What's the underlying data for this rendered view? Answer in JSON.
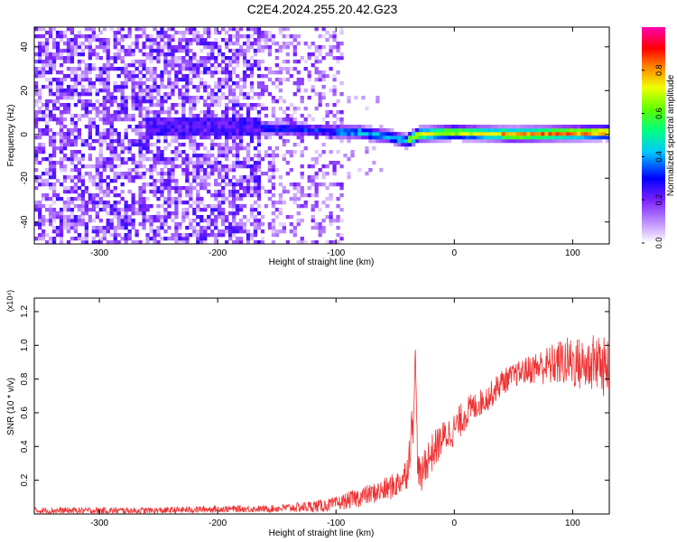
{
  "title": "C2E4.2024.255.20.42.G23",
  "chart_data": [
    {
      "type": "heatmap",
      "xlabel": "Height of straight line (km)",
      "ylabel": "Frequency (Hz)",
      "xlim": [
        -355,
        131
      ],
      "ylim": [
        -50,
        49
      ],
      "x_ticks": [
        -300,
        -200,
        -100,
        0,
        100
      ],
      "y_ticks": [
        -40,
        -20,
        0,
        20,
        40
      ],
      "colorbar": {
        "label": "Normalized spectral amplitude",
        "range": [
          0,
          1
        ],
        "ticks": [
          "0.0",
          "0.2",
          "0.4",
          "0.6",
          "0.8"
        ]
      },
      "description_regions": [
        {
          "x_range": [
            -355,
            -165
          ],
          "freq_range": [
            -50,
            49
          ],
          "amplitude": "low (0.05-0.25), broadband noise"
        },
        {
          "x_range": [
            -165,
            -95
          ],
          "freq_range": [
            -50,
            49
          ],
          "amplitude": "low noise, with band near 0 Hz reaching 0.3-0.5"
        },
        {
          "x_range": [
            -95,
            131
          ],
          "freq_range": [
            -5,
            5
          ],
          "amplitude": "narrow band centered near 0 Hz, rising to 0.6-0.9"
        }
      ],
      "narrow_band_center_hz": [
        {
          "x": -165,
          "f": 3
        },
        {
          "x": -120,
          "f": 2
        },
        {
          "x": -80,
          "f": 1
        },
        {
          "x": -55,
          "f": -1
        },
        {
          "x": -40,
          "f": -3
        },
        {
          "x": -30,
          "f": 0
        },
        {
          "x": 0,
          "f": 1
        },
        {
          "x": 50,
          "f": 0
        },
        {
          "x": 131,
          "f": 1
        }
      ]
    },
    {
      "type": "line",
      "xlabel": "Height of straight line (km)",
      "ylabel": "SNR (10 * v/v)",
      "y_multiplier": "(x10⁴)",
      "xlim": [
        -355,
        131
      ],
      "ylim": [
        0,
        1.28
      ],
      "x_ticks": [
        -300,
        -200,
        -100,
        0,
        100
      ],
      "y_ticks": [
        0.2,
        0.4,
        0.6,
        0.8,
        1.0,
        1.2
      ],
      "series_color": "#ee3333",
      "x": [
        -355,
        -300,
        -250,
        -200,
        -160,
        -130,
        -110,
        -100,
        -90,
        -80,
        -70,
        -60,
        -50,
        -45,
        -40,
        -35,
        -33,
        -31,
        -28,
        -25,
        -20,
        -10,
        0,
        10,
        20,
        30,
        40,
        50,
        60,
        70,
        80,
        90,
        100,
        110,
        120,
        131
      ],
      "y": [
        0.02,
        0.02,
        0.02,
        0.03,
        0.03,
        0.04,
        0.05,
        0.06,
        0.08,
        0.1,
        0.12,
        0.14,
        0.17,
        0.2,
        0.25,
        0.55,
        0.95,
        0.3,
        0.2,
        0.3,
        0.35,
        0.45,
        0.5,
        0.6,
        0.65,
        0.7,
        0.78,
        0.82,
        0.85,
        0.87,
        0.88,
        0.9,
        0.9,
        0.88,
        0.9,
        0.85
      ],
      "noise_amplitude": [
        0.02,
        0.02,
        0.02,
        0.02,
        0.02,
        0.03,
        0.04,
        0.04,
        0.05,
        0.06,
        0.06,
        0.07,
        0.08,
        0.08,
        0.1,
        0.15,
        0.1,
        0.1,
        0.1,
        0.12,
        0.12,
        0.1,
        0.1,
        0.1,
        0.08,
        0.08,
        0.08,
        0.07,
        0.08,
        0.1,
        0.12,
        0.14,
        0.16,
        0.16,
        0.18,
        0.18
      ]
    }
  ]
}
